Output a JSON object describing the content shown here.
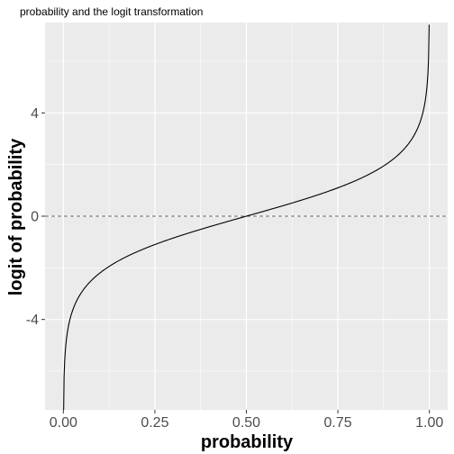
{
  "chart_data": {
    "type": "line",
    "title": "probability and the logit transformation",
    "xlabel": "probability",
    "ylabel": "logit of probability",
    "xlim": [
      -0.05,
      1.05
    ],
    "ylim": [
      -7.5,
      7.5
    ],
    "x_ticks": [
      0.0,
      0.25,
      0.5,
      0.75,
      1.0
    ],
    "x_tick_labels": [
      "0.00",
      "0.25",
      "0.50",
      "0.75",
      "1.00"
    ],
    "y_ticks": [
      -4,
      0,
      4
    ],
    "y_tick_labels": [
      "-4",
      "0",
      "4"
    ],
    "grid": true,
    "panel_background": "#ebebeb",
    "grid_color": "#ffffff",
    "line_color": "#000000",
    "reference_line": {
      "y": 0,
      "style": "dashed",
      "color": "#666666"
    },
    "series": [
      {
        "function": "logit",
        "x": [
          0.0005,
          0.001,
          0.002,
          0.005,
          0.01,
          0.02,
          0.05,
          0.1,
          0.15,
          0.2,
          0.25,
          0.3,
          0.35,
          0.4,
          0.45,
          0.5,
          0.55,
          0.6,
          0.65,
          0.7,
          0.75,
          0.8,
          0.85,
          0.9,
          0.95,
          0.98,
          0.99,
          0.995,
          0.998,
          0.999
        ],
        "y": [
          -7.6,
          -6.91,
          -6.21,
          -5.29,
          -4.6,
          -3.89,
          -2.94,
          -2.2,
          -1.73,
          -1.39,
          -1.1,
          -0.85,
          -0.62,
          -0.41,
          -0.2,
          0.0,
          0.2,
          0.41,
          0.62,
          0.85,
          1.1,
          1.39,
          1.73,
          2.2,
          2.94,
          3.89,
          4.6,
          5.29,
          6.21,
          6.91
        ]
      }
    ]
  }
}
